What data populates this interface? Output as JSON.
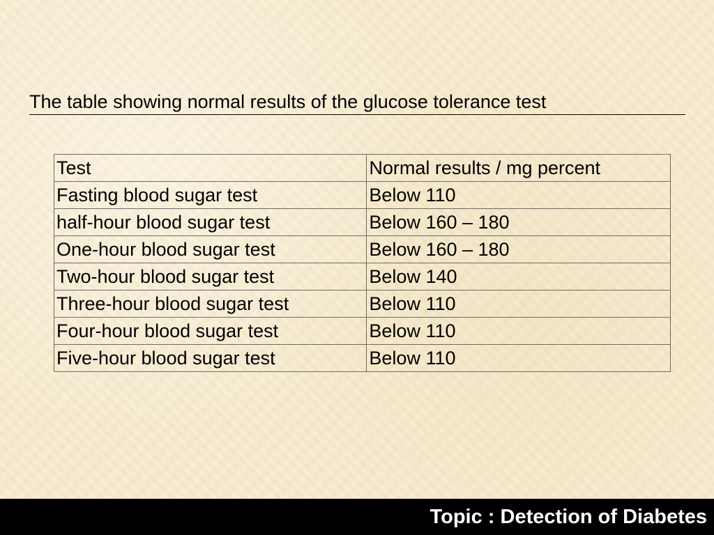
{
  "title": "The table showing normal results of the glucose tolerance test",
  "table": {
    "headers": [
      "Test",
      "Normal results / mg percent"
    ],
    "rows": [
      [
        "Fasting blood sugar test",
        "Below 110"
      ],
      [
        "half-hour blood sugar test",
        "Below 160 – 180"
      ],
      [
        "One-hour blood sugar test",
        "Below 160 – 180"
      ],
      [
        "Two-hour blood sugar test",
        "Below 140"
      ],
      [
        "Three-hour blood sugar test",
        "Below 110"
      ],
      [
        "Four-hour blood sugar test",
        "Below 110"
      ],
      [
        "Five-hour blood sugar test",
        "Below 110"
      ]
    ]
  },
  "footer": {
    "topic": "Topic : Detection of Diabetes"
  },
  "colors": {
    "background": "#f7ebcd",
    "footer_bar": "#000000",
    "footer_text": "#ffffff",
    "table_border": "#6b6b6b"
  }
}
